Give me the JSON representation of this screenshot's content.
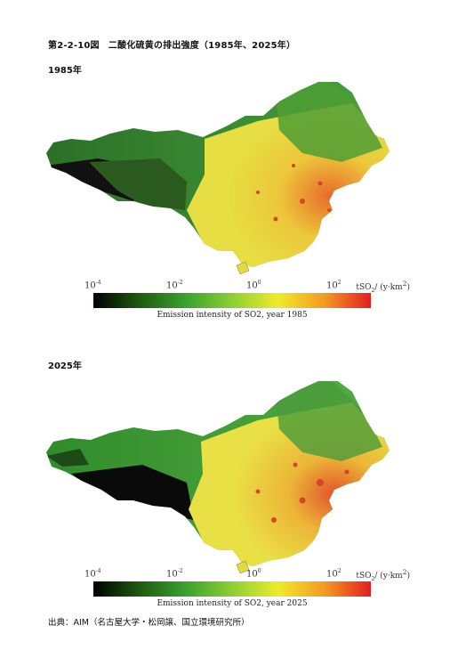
{
  "figure": {
    "title": "第2-2-10図　二酸化硫黄の排出強度（1985年、2025年）"
  },
  "panels": [
    {
      "year_label": "1985年",
      "legend": {
        "ticks": [
          {
            "base": "10",
            "exp": "-4"
          },
          {
            "base": "10",
            "exp": "-2"
          },
          {
            "base": "10",
            "exp": "0"
          },
          {
            "base": "10",
            "exp": "2"
          }
        ],
        "unit_main": "tSO",
        "unit_sub": "2",
        "unit_rest": "/ (y·km",
        "unit_exp": "2",
        "unit_close": ")",
        "caption": "Emission intensity of SO2, year 1985"
      }
    },
    {
      "year_label": "2025年",
      "legend": {
        "ticks": [
          {
            "base": "10",
            "exp": "-4"
          },
          {
            "base": "10",
            "exp": "-2"
          },
          {
            "base": "10",
            "exp": "0"
          },
          {
            "base": "10",
            "exp": "2"
          }
        ],
        "unit_main": "tSO",
        "unit_sub": "2",
        "unit_rest": "/ (y·km",
        "unit_exp": "2",
        "unit_close": ")",
        "caption": "Emission intensity of SO2, year 2025"
      }
    }
  ],
  "colors": {
    "scale": [
      "#000000",
      "#1f5a10",
      "#3aa22e",
      "#8ccf35",
      "#f0ea2a",
      "#f39a22",
      "#e21f1f"
    ],
    "low_west": "#2f7f2f",
    "mid_green": "#4aa640",
    "yellow": "#e8d83a",
    "high": "#d6452b",
    "dark": "#0a0a0a"
  },
  "source": "出典：AIM（名古屋大学・松岡譲、国立環境研究所）"
}
